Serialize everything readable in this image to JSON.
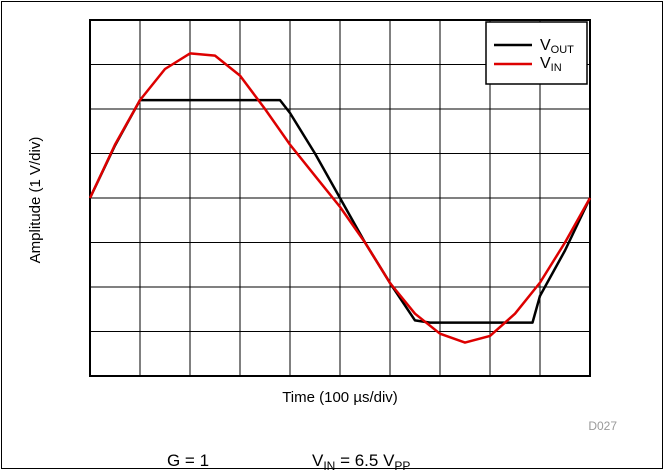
{
  "chart_data": {
    "type": "line",
    "xlabel": "Time (100 µs/div)",
    "ylabel": "Amplitude (1 V/div)",
    "x_divisions": 10,
    "y_divisions": 8,
    "xlim": [
      0,
      10
    ],
    "ylim": [
      -4,
      4
    ],
    "grid": true,
    "legend_position": "top-right",
    "series": [
      {
        "name": "VOUT",
        "name_main": "V",
        "name_sub": "OUT",
        "color": "#000000",
        "x": [
          0.0,
          0.5,
          1.0,
          1.2,
          1.5,
          2.0,
          2.5,
          3.0,
          3.5,
          3.8,
          4.0,
          4.5,
          5.0,
          5.5,
          6.0,
          6.5,
          6.8,
          7.0,
          7.5,
          8.0,
          8.5,
          8.85,
          9.0,
          9.5,
          10.0
        ],
        "values": [
          0.0,
          1.18,
          2.2,
          2.2,
          2.2,
          2.2,
          2.2,
          2.2,
          2.2,
          2.2,
          1.91,
          1.0,
          0.0,
          -1.0,
          -1.91,
          -2.75,
          -2.8,
          -2.8,
          -2.8,
          -2.8,
          -2.8,
          -2.8,
          -2.2,
          -1.18,
          0.0
        ]
      },
      {
        "name": "VIN",
        "name_main": "V",
        "name_sub": "IN",
        "color": "#dd0000",
        "x": [
          0.0,
          0.5,
          1.0,
          1.5,
          2.0,
          2.5,
          3.0,
          3.5,
          4.0,
          4.5,
          5.0,
          5.5,
          6.0,
          6.5,
          7.0,
          7.5,
          8.0,
          8.5,
          9.0,
          9.5,
          10.0
        ],
        "values": [
          0.0,
          1.2,
          2.2,
          2.9,
          3.25,
          3.2,
          2.75,
          2.0,
          1.2,
          0.5,
          -0.2,
          -1.0,
          -1.91,
          -2.6,
          -3.05,
          -3.25,
          -3.1,
          -2.6,
          -1.9,
          -1.0,
          0.0
        ]
      }
    ],
    "figure_id": "D027",
    "conditions": {
      "gain": "G = 1",
      "vin_main": "V",
      "vin_sub": "IN",
      "vin_eq": " = 6.5 V",
      "vin_unit_sub": "PP"
    }
  }
}
